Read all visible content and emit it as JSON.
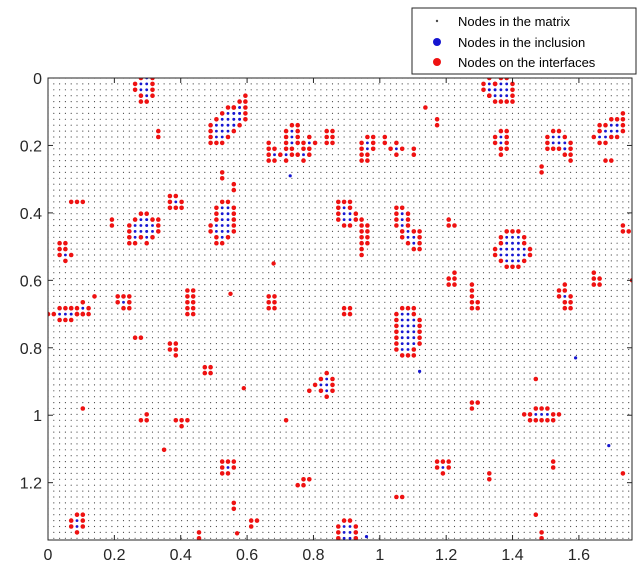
{
  "colors": {
    "matrix": "#4a4a4a",
    "inclusion": "#1515d0",
    "interface": "#ee1111",
    "axis": "#262626",
    "background": "#ffffff"
  },
  "chart_data": {
    "type": "scatter",
    "title": "",
    "xlabel": "",
    "ylabel": "",
    "xlim": [
      0,
      1.76
    ],
    "ylim": [
      0,
      1.37
    ],
    "y_reversed": true,
    "grid": false,
    "legend_position": "top-right",
    "x_ticks": [
      0,
      0.2,
      0.4,
      0.6,
      0.8,
      1,
      1.2,
      1.4,
      1.6
    ],
    "x_tick_labels": [
      "0",
      "0.2",
      "0.4",
      "0.6",
      "0.8",
      "1",
      "1.2",
      "1.4",
      "1.6"
    ],
    "y_ticks": [
      0,
      0.2,
      0.4,
      0.6,
      0.8,
      1,
      1.2
    ],
    "y_tick_labels": [
      "0",
      "0.2",
      "0.4",
      "0.6",
      "0.8",
      "1",
      "1.2"
    ],
    "node_spacing": 0.0175,
    "series": [
      {
        "name": "Nodes in the matrix",
        "marker": "dot-small",
        "color": "#4a4a4a"
      },
      {
        "name": "Nodes in the inclusion",
        "marker": "dot",
        "color": "#1515d0"
      },
      {
        "name": "Nodes on the interfaces",
        "marker": "dot",
        "color": "#ee1111"
      }
    ],
    "inclusions": [
      {
        "cx": 0.29,
        "cy": 0.03,
        "rx": 0.03,
        "ry": 0.055,
        "rot": 0
      },
      {
        "cx": 0.53,
        "cy": 0.14,
        "rx": 0.038,
        "ry": 0.075,
        "rot": 35
      },
      {
        "cx": 0.58,
        "cy": 0.1,
        "rx": 0.025,
        "ry": 0.05,
        "rot": 20
      },
      {
        "cx": 0.33,
        "cy": 0.16,
        "rx": 0.012,
        "ry": 0.018,
        "rot": 0
      },
      {
        "cx": 0.67,
        "cy": 0.22,
        "rx": 0.018,
        "ry": 0.035,
        "rot": -10
      },
      {
        "cx": 0.73,
        "cy": 0.19,
        "rx": 0.025,
        "ry": 0.07,
        "rot": 15
      },
      {
        "cx": 0.78,
        "cy": 0.21,
        "rx": 0.022,
        "ry": 0.04,
        "rot": 30
      },
      {
        "cx": 0.85,
        "cy": 0.18,
        "rx": 0.02,
        "ry": 0.03,
        "rot": 0
      },
      {
        "cx": 0.96,
        "cy": 0.21,
        "rx": 0.025,
        "ry": 0.055,
        "rot": 20
      },
      {
        "cx": 1.02,
        "cy": 0.18,
        "rx": 0.01,
        "ry": 0.015,
        "rot": 0
      },
      {
        "cx": 1.05,
        "cy": 0.21,
        "rx": 0.02,
        "ry": 0.03,
        "rot": 0
      },
      {
        "cx": 1.1,
        "cy": 0.22,
        "rx": 0.015,
        "ry": 0.025,
        "rot": 0
      },
      {
        "cx": 1.13,
        "cy": 0.09,
        "rx": 0.01,
        "ry": 0.012,
        "rot": 0
      },
      {
        "cx": 1.17,
        "cy": 0.13,
        "rx": 0.01,
        "ry": 0.014,
        "rot": 0
      },
      {
        "cx": 1.37,
        "cy": 0.04,
        "rx": 0.045,
        "ry": 0.045,
        "rot": 0
      },
      {
        "cx": 1.33,
        "cy": 0.03,
        "rx": 0.02,
        "ry": 0.035,
        "rot": 0
      },
      {
        "cx": 1.37,
        "cy": 0.19,
        "rx": 0.025,
        "ry": 0.04,
        "rot": 0
      },
      {
        "cx": 1.53,
        "cy": 0.19,
        "rx": 0.035,
        "ry": 0.035,
        "rot": 20
      },
      {
        "cx": 1.57,
        "cy": 0.22,
        "rx": 0.015,
        "ry": 0.03,
        "rot": 0
      },
      {
        "cx": 1.68,
        "cy": 0.16,
        "rx": 0.03,
        "ry": 0.045,
        "rot": 40
      },
      {
        "cx": 1.72,
        "cy": 0.14,
        "rx": 0.02,
        "ry": 0.04,
        "rot": 10
      },
      {
        "cx": 1.69,
        "cy": 0.24,
        "rx": 0.014,
        "ry": 0.012,
        "rot": 0
      },
      {
        "cx": 1.49,
        "cy": 0.27,
        "rx": 0.01,
        "ry": 0.015,
        "rot": 0
      },
      {
        "cx": 0.53,
        "cy": 0.29,
        "rx": 0.015,
        "ry": 0.012,
        "rot": 0
      },
      {
        "cx": 0.56,
        "cy": 0.32,
        "rx": 0.01,
        "ry": 0.015,
        "rot": 0
      },
      {
        "cx": 0.09,
        "cy": 0.37,
        "rx": 0.025,
        "ry": 0.012,
        "rot": 0
      },
      {
        "cx": 0.19,
        "cy": 0.43,
        "rx": 0.015,
        "ry": 0.025,
        "rot": 0
      },
      {
        "cx": 0.05,
        "cy": 0.51,
        "rx": 0.02,
        "ry": 0.04,
        "rot": -10
      },
      {
        "cx": 0.27,
        "cy": 0.45,
        "rx": 0.03,
        "ry": 0.06,
        "rot": 25
      },
      {
        "cx": 0.31,
        "cy": 0.45,
        "rx": 0.025,
        "ry": 0.045,
        "rot": 15
      },
      {
        "cx": 0.38,
        "cy": 0.37,
        "rx": 0.03,
        "ry": 0.03,
        "rot": 40
      },
      {
        "cx": 0.53,
        "cy": 0.43,
        "rx": 0.04,
        "ry": 0.07,
        "rot": 15
      },
      {
        "cx": 0.9,
        "cy": 0.4,
        "rx": 0.03,
        "ry": 0.05,
        "rot": -10
      },
      {
        "cx": 0.95,
        "cy": 0.47,
        "rx": 0.015,
        "ry": 0.06,
        "rot": 0
      },
      {
        "cx": 1.07,
        "cy": 0.43,
        "rx": 0.025,
        "ry": 0.055,
        "rot": -15
      },
      {
        "cx": 1.11,
        "cy": 0.48,
        "rx": 0.025,
        "ry": 0.04,
        "rot": 20
      },
      {
        "cx": 1.21,
        "cy": 0.43,
        "rx": 0.02,
        "ry": 0.012,
        "rot": 0
      },
      {
        "cx": 1.4,
        "cy": 0.51,
        "rx": 0.055,
        "ry": 0.06,
        "rot": 0
      },
      {
        "cx": 1.74,
        "cy": 0.45,
        "rx": 0.015,
        "ry": 0.015,
        "rot": 0
      },
      {
        "cx": 1.22,
        "cy": 0.6,
        "rx": 0.018,
        "ry": 0.03,
        "rot": 0
      },
      {
        "cx": 1.28,
        "cy": 0.65,
        "rx": 0.015,
        "ry": 0.045,
        "rot": -15
      },
      {
        "cx": 1.56,
        "cy": 0.65,
        "rx": 0.02,
        "ry": 0.045,
        "rot": -15
      },
      {
        "cx": 1.65,
        "cy": 0.6,
        "rx": 0.018,
        "ry": 0.03,
        "rot": -20
      },
      {
        "cx": 0.05,
        "cy": 0.7,
        "rx": 0.06,
        "ry": 0.02,
        "rot": 0
      },
      {
        "cx": 0.1,
        "cy": 0.69,
        "rx": 0.04,
        "ry": 0.025,
        "rot": -10
      },
      {
        "cx": 0.14,
        "cy": 0.65,
        "rx": 0.01,
        "ry": 0.012,
        "rot": 0
      },
      {
        "cx": 0.23,
        "cy": 0.66,
        "rx": 0.022,
        "ry": 0.03,
        "rot": -20
      },
      {
        "cx": 0.43,
        "cy": 0.67,
        "rx": 0.025,
        "ry": 0.045,
        "rot": 0
      },
      {
        "cx": 0.68,
        "cy": 0.67,
        "rx": 0.02,
        "ry": 0.03,
        "rot": -10
      },
      {
        "cx": 0.9,
        "cy": 0.69,
        "rx": 0.015,
        "ry": 0.02,
        "rot": 0
      },
      {
        "cx": 1.08,
        "cy": 0.75,
        "rx": 0.045,
        "ry": 0.085,
        "rot": 0
      },
      {
        "cx": 0.27,
        "cy": 0.77,
        "rx": 0.015,
        "ry": 0.012,
        "rot": 0
      },
      {
        "cx": 0.38,
        "cy": 0.8,
        "rx": 0.02,
        "ry": 0.025,
        "rot": 0
      },
      {
        "cx": 0.48,
        "cy": 0.87,
        "rx": 0.025,
        "ry": 0.015,
        "rot": -30
      },
      {
        "cx": 0.84,
        "cy": 0.91,
        "rx": 0.035,
        "ry": 0.04,
        "rot": 0
      },
      {
        "cx": 0.78,
        "cy": 0.92,
        "rx": 0.012,
        "ry": 0.012,
        "rot": 0
      },
      {
        "cx": 1.47,
        "cy": 0.89,
        "rx": 0.012,
        "ry": 0.012,
        "rot": 0
      },
      {
        "cx": 0.11,
        "cy": 0.98,
        "rx": 0.01,
        "ry": 0.014,
        "rot": 0
      },
      {
        "cx": 0.25,
        "cy": 0.97,
        "rx": 0.012,
        "ry": 0.008,
        "rot": 0
      },
      {
        "cx": 1.28,
        "cy": 0.97,
        "rx": 0.018,
        "ry": 0.018,
        "rot": 0
      },
      {
        "cx": 1.49,
        "cy": 1.0,
        "rx": 0.06,
        "ry": 0.022,
        "rot": 0
      },
      {
        "cx": 0.29,
        "cy": 1.01,
        "rx": 0.015,
        "ry": 0.015,
        "rot": 0
      },
      {
        "cx": 0.4,
        "cy": 1.02,
        "rx": 0.025,
        "ry": 0.015,
        "rot": 0
      },
      {
        "cx": 0.72,
        "cy": 1.01,
        "rx": 0.012,
        "ry": 0.01,
        "rot": 0
      },
      {
        "cx": 0.35,
        "cy": 1.11,
        "rx": 0.012,
        "ry": 0.008,
        "rot": 0
      },
      {
        "cx": 0.54,
        "cy": 1.15,
        "rx": 0.03,
        "ry": 0.03,
        "rot": -15
      },
      {
        "cx": 1.19,
        "cy": 1.15,
        "rx": 0.025,
        "ry": 0.025,
        "rot": -20
      },
      {
        "cx": 1.52,
        "cy": 1.15,
        "rx": 0.012,
        "ry": 0.02,
        "rot": 0
      },
      {
        "cx": 0.77,
        "cy": 1.2,
        "rx": 0.025,
        "ry": 0.015,
        "rot": -40
      },
      {
        "cx": 1.33,
        "cy": 1.18,
        "rx": 0.01,
        "ry": 0.012,
        "rot": 0
      },
      {
        "cx": 1.74,
        "cy": 1.18,
        "rx": 0.01,
        "ry": 0.015,
        "rot": 0
      },
      {
        "cx": 1.06,
        "cy": 1.24,
        "rx": 0.02,
        "ry": 0.015,
        "rot": 0
      },
      {
        "cx": 0.56,
        "cy": 1.27,
        "rx": 0.012,
        "ry": 0.012,
        "rot": 0
      },
      {
        "cx": 0.09,
        "cy": 1.32,
        "rx": 0.03,
        "ry": 0.03,
        "rot": 0
      },
      {
        "cx": 0.62,
        "cy": 1.32,
        "rx": 0.015,
        "ry": 0.012,
        "rot": 0
      },
      {
        "cx": 0.9,
        "cy": 1.36,
        "rx": 0.035,
        "ry": 0.055,
        "rot": 0
      },
      {
        "cx": 1.47,
        "cy": 1.3,
        "rx": 0.015,
        "ry": 0.012,
        "rot": 0
      },
      {
        "cx": 0.45,
        "cy": 1.36,
        "rx": 0.012,
        "ry": 0.025,
        "rot": 0
      },
      {
        "cx": 1.49,
        "cy": 1.35,
        "rx": 0.015,
        "ry": 0.018,
        "rot": 0
      }
    ],
    "isolated_inclusion_nodes": [
      [
        0.73,
        0.29
      ],
      [
        1.12,
        0.87
      ],
      [
        1.59,
        0.83
      ],
      [
        1.69,
        1.09
      ],
      [
        0.96,
        1.36
      ]
    ],
    "isolated_interface_nodes": [
      [
        0.68,
        0.55
      ],
      [
        0.55,
        0.64
      ],
      [
        0.59,
        0.92
      ],
      [
        0.57,
        1.35
      ],
      [
        1.76,
        0.6
      ]
    ]
  }
}
